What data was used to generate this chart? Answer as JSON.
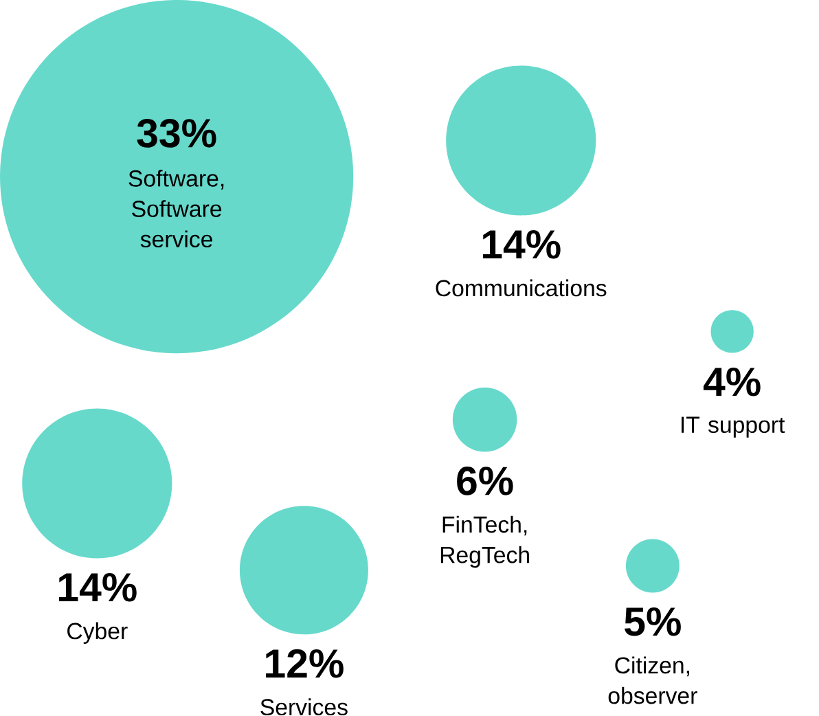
{
  "chart_data": {
    "type": "other",
    "color": "#66d9cb",
    "categories": [
      "Software, Software service",
      "Communications",
      "IT support",
      "Cyber",
      "Services",
      "FinTech, RegTech",
      "Citizen, observer"
    ],
    "values": [
      33,
      14,
      4,
      14,
      12,
      6,
      5
    ],
    "value_labels": [
      "33%",
      "14%",
      "4%",
      "14%",
      "12%",
      "6%",
      "5%"
    ]
  }
}
